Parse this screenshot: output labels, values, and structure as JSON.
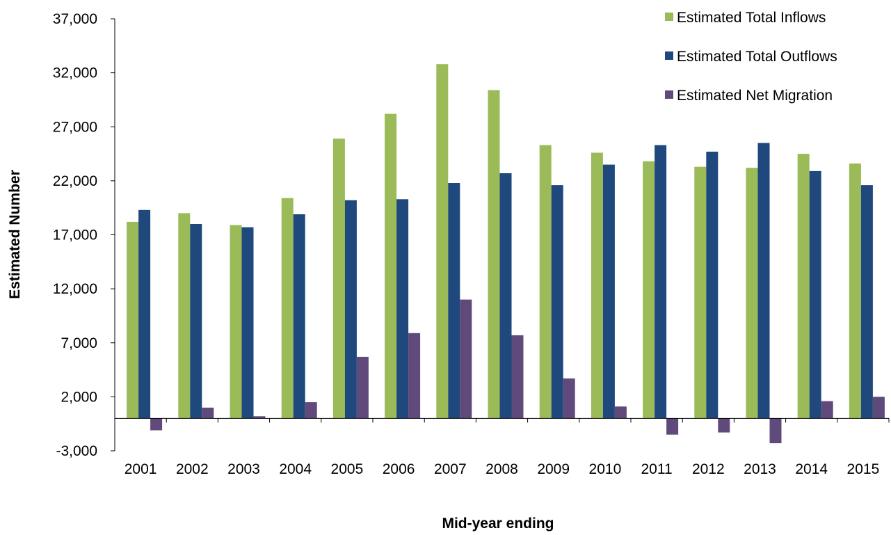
{
  "chart_data": {
    "type": "bar",
    "title": "",
    "xlabel": "Mid-year ending",
    "ylabel": "Estimated Number",
    "ylim": [
      -3000,
      37000
    ],
    "yticks": [
      -3000,
      2000,
      7000,
      12000,
      17000,
      22000,
      27000,
      32000,
      37000
    ],
    "ytick_labels": [
      "-3,000",
      "2,000",
      "7,000",
      "12,000",
      "17,000",
      "22,000",
      "27,000",
      "32,000",
      "37,000"
    ],
    "grid": false,
    "legend_position": "top-right",
    "categories": [
      "2001",
      "2002",
      "2003",
      "2004",
      "2005",
      "2006",
      "2007",
      "2008",
      "2009",
      "2010",
      "2011",
      "2012",
      "2013",
      "2014",
      "2015"
    ],
    "series": [
      {
        "name": "Estimated Total Inflows",
        "color": "#9BBB59",
        "values": [
          18200,
          19000,
          17900,
          20400,
          25900,
          28200,
          32800,
          30400,
          25300,
          24600,
          23800,
          23300,
          23200,
          24500,
          23600
        ]
      },
      {
        "name": "Estimated Total Outflows",
        "color": "#1F497D",
        "values": [
          19300,
          18000,
          17700,
          18900,
          20200,
          20300,
          21800,
          22700,
          21600,
          23500,
          25300,
          24700,
          25500,
          22900,
          21600
        ]
      },
      {
        "name": "Estimated Net Migration",
        "color": "#604A7B",
        "values": [
          -1100,
          1000,
          200,
          1500,
          5700,
          7900,
          11000,
          7700,
          3700,
          1100,
          -1500,
          -1300,
          -2300,
          1600,
          2000
        ]
      }
    ]
  }
}
